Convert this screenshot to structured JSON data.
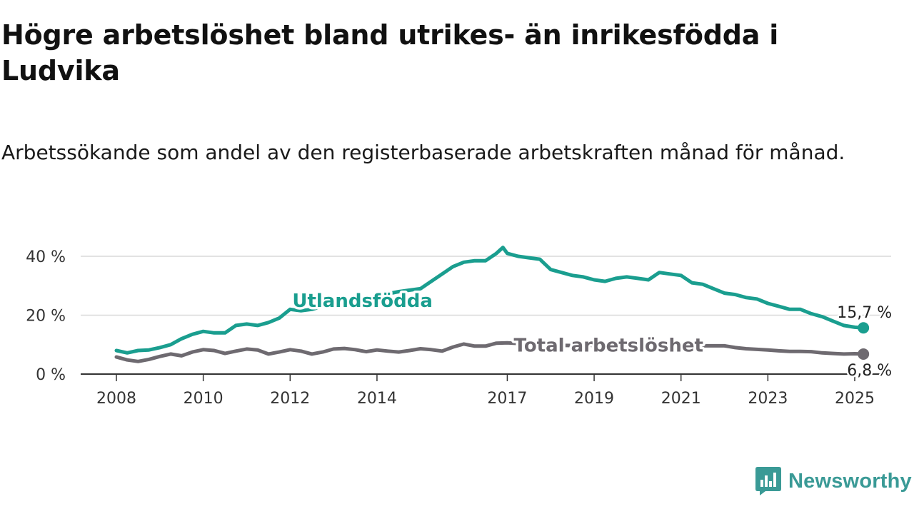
{
  "title": "Högre arbetslöshet bland utrikes- än inrikesfödda i Ludvika",
  "subtitle": "Arbetssökande som andel av den registerbaserade arbetskraften månad för månad.",
  "brand": {
    "name": "Newsworthy",
    "icon": "newsworthy-logo-icon"
  },
  "colors": {
    "utlandsfodda": "#1a9e8f",
    "total": "#6e6a70",
    "grid": "#d9d9d9",
    "axis": "#333333"
  },
  "chart_data": {
    "type": "line",
    "title": "Högre arbetslöshet bland utrikes- än inrikesfödda i Ludvika",
    "xlabel": "",
    "ylabel": "",
    "xlim": [
      2008.0,
      2025.5
    ],
    "ylim": [
      0,
      40
    ],
    "grid": true,
    "x_ticks": [
      {
        "value": 2008,
        "label": "2008"
      },
      {
        "value": 2010,
        "label": "2010"
      },
      {
        "value": 2012,
        "label": "2012"
      },
      {
        "value": 2014,
        "label": "2014"
      },
      {
        "value": 2017,
        "label": "2017"
      },
      {
        "value": 2019,
        "label": "2019"
      },
      {
        "value": 2021,
        "label": "2021"
      },
      {
        "value": 2023,
        "label": "2023"
      },
      {
        "value": 2025,
        "label": "2025"
      }
    ],
    "y_ticks": [
      {
        "value": 0,
        "label": "0 %"
      },
      {
        "value": 20,
        "label": "20 %"
      },
      {
        "value": 40,
        "label": "40 %"
      }
    ],
    "series": [
      {
        "name": "Utlandsfödda",
        "color": "#1a9e8f",
        "end_label": "15,7 %",
        "x": [
          2008.0,
          2008.25,
          2008.5,
          2008.75,
          2009.0,
          2009.25,
          2009.5,
          2009.75,
          2010.0,
          2010.25,
          2010.5,
          2010.75,
          2011.0,
          2011.25,
          2011.5,
          2011.75,
          2012.0,
          2012.25,
          2012.5,
          2012.75,
          2013.0,
          2013.5,
          2014.0,
          2014.5,
          2015.0,
          2015.25,
          2015.5,
          2015.75,
          2016.0,
          2016.25,
          2016.5,
          2016.75,
          2016.9,
          2017.0,
          2017.25,
          2017.5,
          2017.75,
          2018.0,
          2018.25,
          2018.5,
          2018.75,
          2019.0,
          2019.25,
          2019.5,
          2019.75,
          2020.0,
          2020.25,
          2020.5,
          2020.75,
          2021.0,
          2021.25,
          2021.5,
          2021.75,
          2022.0,
          2022.25,
          2022.5,
          2022.75,
          2023.0,
          2023.25,
          2023.5,
          2023.75,
          2024.0,
          2024.25,
          2024.5,
          2024.75,
          2025.0,
          2025.2
        ],
        "values": [
          8.0,
          7.2,
          8.0,
          8.2,
          9.0,
          10.0,
          12.0,
          13.5,
          14.5,
          14.0,
          14.0,
          16.5,
          17.0,
          16.5,
          17.5,
          19.0,
          22.0,
          21.5,
          22.0,
          23.0,
          24.0,
          25.0,
          26.5,
          28.0,
          29.0,
          31.5,
          34.0,
          36.5,
          38.0,
          38.5,
          38.5,
          41.0,
          43.0,
          41.0,
          40.0,
          39.5,
          39.0,
          35.5,
          34.5,
          33.5,
          33.0,
          32.0,
          31.5,
          32.5,
          33.0,
          32.5,
          32.0,
          34.5,
          34.0,
          33.5,
          31.0,
          30.5,
          29.0,
          27.5,
          27.0,
          26.0,
          25.5,
          24.0,
          23.0,
          22.0,
          22.0,
          20.5,
          19.5,
          18.0,
          16.5,
          15.9,
          15.7
        ]
      },
      {
        "name": "Total arbetslöshet",
        "color": "#6e6a70",
        "end_label": "6,8 %",
        "x": [
          2008.0,
          2008.25,
          2008.5,
          2008.75,
          2009.0,
          2009.25,
          2009.5,
          2009.75,
          2010.0,
          2010.25,
          2010.5,
          2010.75,
          2011.0,
          2011.25,
          2011.5,
          2011.75,
          2012.0,
          2012.25,
          2012.5,
          2012.75,
          2013.0,
          2013.25,
          2013.5,
          2013.75,
          2014.0,
          2014.25,
          2014.5,
          2014.75,
          2015.0,
          2015.25,
          2015.5,
          2015.75,
          2016.0,
          2016.25,
          2016.5,
          2016.75,
          2017.0,
          2017.25,
          2017.5,
          2017.75,
          2018.0,
          2018.5,
          2019.0,
          2019.5,
          2020.0,
          2020.5,
          2021.0,
          2021.5,
          2022.0,
          2022.25,
          2022.5,
          2022.75,
          2023.0,
          2023.25,
          2023.5,
          2023.75,
          2024.0,
          2024.25,
          2024.5,
          2024.75,
          2025.0,
          2025.2
        ],
        "values": [
          5.8,
          4.8,
          4.3,
          5.0,
          6.0,
          6.8,
          6.2,
          7.5,
          8.3,
          8.0,
          7.0,
          7.8,
          8.5,
          8.2,
          6.8,
          7.5,
          8.3,
          7.8,
          6.8,
          7.5,
          8.5,
          8.7,
          8.3,
          7.6,
          8.2,
          7.8,
          7.5,
          8.0,
          8.6,
          8.3,
          7.8,
          9.2,
          10.2,
          9.5,
          9.5,
          10.5,
          10.6,
          10.4,
          10.2,
          10.0,
          9.8,
          9.7,
          9.8,
          9.8,
          9.8,
          9.7,
          9.6,
          9.6,
          9.6,
          9.0,
          8.6,
          8.4,
          8.2,
          7.9,
          7.7,
          7.7,
          7.6,
          7.2,
          7.0,
          6.8,
          6.9,
          6.8
        ]
      }
    ],
    "annotations": [
      {
        "text": "Utlandsfödda",
        "series": "Utlandsfödda",
        "x": 2012.05,
        "y": 24.5
      },
      {
        "text": "Total arbetslöshet",
        "series": "Total arbetslöshet",
        "x": 2017.15,
        "y": 9.3
      }
    ]
  }
}
